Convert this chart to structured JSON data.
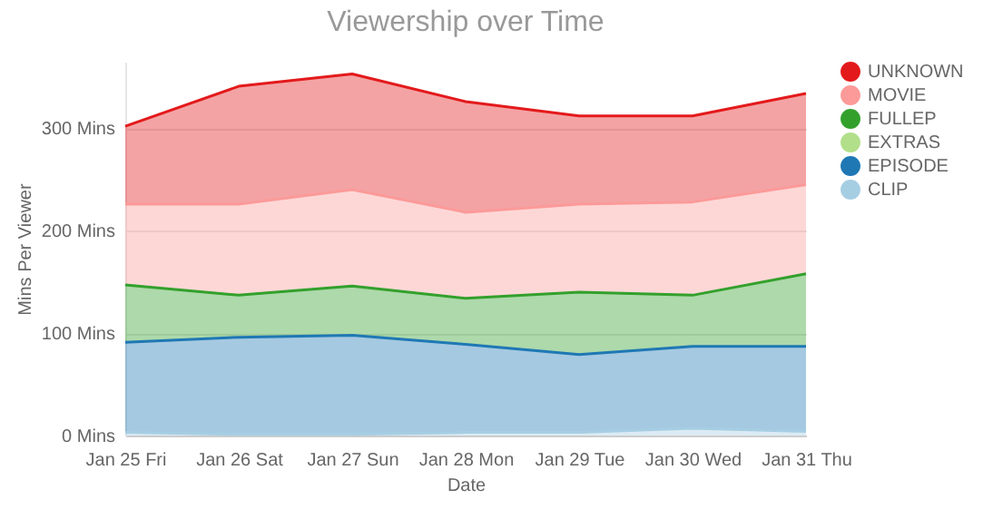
{
  "chart_data": {
    "type": "area",
    "title": "Viewership over Time",
    "xlabel": "Date",
    "ylabel": "Mins Per Viewer",
    "stacked": true,
    "categories": [
      "Jan 25 Fri",
      "Jan 26 Sat",
      "Jan 27 Sun",
      "Jan 28 Mon",
      "Jan 29 Tue",
      "Jan 30 Wed",
      "Jan 31 Thu"
    ],
    "series": [
      {
        "name": "CLIP",
        "color": "#a6cee3",
        "values": [
          3,
          1,
          1,
          3,
          3,
          7,
          4
        ]
      },
      {
        "name": "EPISODE",
        "color": "#1f78b4",
        "values": [
          88,
          95,
          97,
          86,
          76,
          80,
          83
        ]
      },
      {
        "name": "EXTRAS",
        "color": "#b2df8a",
        "values": [
          null,
          null,
          null,
          null,
          null,
          null,
          null
        ]
      },
      {
        "name": "FULLEP",
        "color": "#33a02c",
        "values": [
          56,
          41,
          48,
          45,
          61,
          50,
          71
        ]
      },
      {
        "name": "MOVIE",
        "color": "#fb9a99",
        "values": [
          79,
          89,
          94,
          84,
          86,
          91,
          87
        ]
      },
      {
        "name": "UNKNOWN",
        "color": "#e31a1c",
        "values": [
          76,
          115,
          113,
          108,
          86,
          84,
          89
        ]
      }
    ],
    "ylim": [
      0,
      365
    ],
    "yticks": [
      {
        "value": 0,
        "label": "0 Mins"
      },
      {
        "value": 100,
        "label": "100 Mins"
      },
      {
        "value": 200,
        "label": "200 Mins"
      },
      {
        "value": 300,
        "label": "300 Mins"
      }
    ],
    "grid": "y",
    "legend": "right"
  }
}
